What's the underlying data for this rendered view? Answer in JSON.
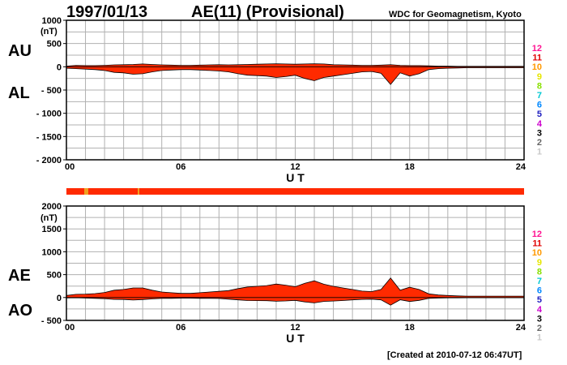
{
  "header": {
    "date": "1997/01/13",
    "title": "AE(11) (Provisional)",
    "source": "WDC for Geomagnetism, Kyoto"
  },
  "footer": {
    "created": "[Created at 2010-07-12 06:47UT]"
  },
  "colors": {
    "fill": "#ff2a00",
    "line": "#000000",
    "grid": "#b0b0b0",
    "station_bar": "#ff2a00",
    "station_marker": "#f0a020"
  },
  "legend": {
    "labels": [
      "12",
      "11",
      "10",
      "9",
      "8",
      "7",
      "6",
      "5",
      "4",
      "3",
      "2",
      "1"
    ],
    "colors": [
      "#ff1493",
      "#e00000",
      "#ff9900",
      "#e6e600",
      "#88e000",
      "#00c8d2",
      "#0088ff",
      "#2020c0",
      "#cc00cc",
      "#000000",
      "#666666",
      "#c8c8c8"
    ]
  },
  "chart_data": [
    {
      "type": "area",
      "panel": "upper",
      "left_labels": [
        "AU",
        "AL"
      ],
      "unit": "(nT)",
      "xlabel": "U T",
      "xlim": [
        0,
        24
      ],
      "xticks": [
        "00",
        "06",
        "12",
        "18",
        "24"
      ],
      "ylim": [
        -2000,
        1000
      ],
      "yticks": [
        1000,
        500,
        0,
        -500,
        -1000,
        -1500,
        -2000
      ],
      "ytick_labels": [
        "1000",
        "500",
        "0",
        "- 500",
        "- 1000",
        "- 1500",
        "- 2000"
      ],
      "series": [
        {
          "x": [
            0,
            0.5,
            1,
            1.5,
            2,
            2.5,
            3,
            3.5,
            4,
            4.5,
            5,
            5.5,
            6,
            6.5,
            7,
            7.5,
            8,
            8.5,
            9,
            9.5,
            10,
            10.5,
            11,
            11.5,
            12,
            12.5,
            13,
            13.5,
            14,
            14.5,
            15,
            15.5,
            16,
            16.5,
            17,
            17.5,
            18,
            18.5,
            19,
            19.5,
            20,
            20.5,
            21,
            21.5,
            22,
            22.5,
            23,
            23.5,
            24
          ],
          "au": [
            15,
            30,
            25,
            25,
            30,
            40,
            45,
            50,
            60,
            50,
            40,
            35,
            30,
            30,
            35,
            40,
            45,
            40,
            45,
            50,
            55,
            60,
            65,
            60,
            55,
            60,
            65,
            60,
            45,
            40,
            35,
            30,
            30,
            35,
            45,
            30,
            25,
            25,
            20,
            15,
            15,
            10,
            10,
            10,
            10,
            10,
            10,
            10,
            10
          ],
          "al": [
            -30,
            -40,
            -50,
            -60,
            -80,
            -120,
            -130,
            -160,
            -150,
            -110,
            -80,
            -70,
            -60,
            -60,
            -70,
            -80,
            -90,
            -110,
            -150,
            -180,
            -190,
            -200,
            -230,
            -210,
            -180,
            -250,
            -300,
            -230,
            -200,
            -170,
            -140,
            -110,
            -100,
            -140,
            -380,
            -130,
            -200,
            -150,
            -60,
            -40,
            -30,
            -25,
            -20,
            -20,
            -20,
            -20,
            -20,
            -20,
            -20
          ]
        }
      ]
    },
    {
      "type": "area",
      "panel": "lower",
      "left_labels": [
        "AE",
        "AO"
      ],
      "unit": "(nT)",
      "xlabel": "U T",
      "xlim": [
        0,
        24
      ],
      "xticks": [
        "00",
        "06",
        "12",
        "18",
        "24"
      ],
      "ylim": [
        -500,
        2000
      ],
      "yticks": [
        2000,
        1500,
        1000,
        500,
        0,
        -500
      ],
      "ytick_labels": [
        "2000",
        "1500",
        "1000",
        "500",
        "0",
        "- 500"
      ],
      "series": [
        {
          "x": [
            0,
            0.5,
            1,
            1.5,
            2,
            2.5,
            3,
            3.5,
            4,
            4.5,
            5,
            5.5,
            6,
            6.5,
            7,
            7.5,
            8,
            8.5,
            9,
            9.5,
            10,
            10.5,
            11,
            11.5,
            12,
            12.5,
            13,
            13.5,
            14,
            14.5,
            15,
            15.5,
            16,
            16.5,
            17,
            17.5,
            18,
            18.5,
            19,
            19.5,
            20,
            20.5,
            21,
            21.5,
            22,
            22.5,
            23,
            23.5,
            24
          ],
          "ae": [
            45,
            70,
            75,
            85,
            110,
            160,
            175,
            210,
            210,
            160,
            120,
            105,
            90,
            90,
            105,
            120,
            135,
            150,
            195,
            230,
            245,
            260,
            295,
            270,
            235,
            310,
            365,
            290,
            245,
            210,
            175,
            140,
            130,
            175,
            425,
            160,
            225,
            175,
            80,
            55,
            45,
            35,
            30,
            30,
            30,
            30,
            30,
            30,
            30
          ],
          "ao": [
            -8,
            -5,
            -12,
            -17,
            -25,
            -40,
            -42,
            -55,
            -45,
            -30,
            -20,
            -17,
            -15,
            -15,
            -17,
            -20,
            -22,
            -35,
            -52,
            -65,
            -67,
            -70,
            -82,
            -75,
            -62,
            -95,
            -117,
            -85,
            -77,
            -65,
            -52,
            -40,
            -35,
            -52,
            -167,
            -50,
            -87,
            -62,
            -20,
            -12,
            -7,
            -7,
            -5,
            -5,
            -5,
            -5,
            -5,
            -5,
            -5
          ]
        }
      ]
    }
  ]
}
